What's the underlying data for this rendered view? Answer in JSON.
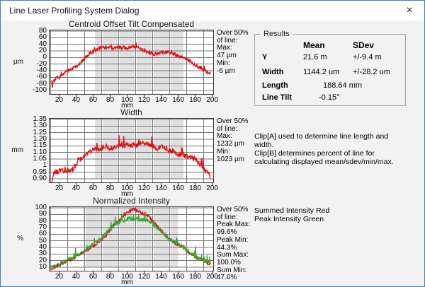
{
  "window": {
    "title": "Line Laser Profiling System Dialog",
    "close_icon": "×"
  },
  "results": {
    "box_label": "Results",
    "col_mean": "Mean",
    "col_sdev": "SDev",
    "rows": [
      {
        "label": "Y",
        "mean": "21.6 m",
        "sdev": "+/-9.4 m"
      },
      {
        "label": "Width",
        "mean": "1144.2 um",
        "sdev": "+/-28.2 um"
      },
      {
        "label": "Length",
        "value": "188.64 mm"
      },
      {
        "label": "Line Tilt",
        "value": "-0.15°"
      }
    ]
  },
  "notes": {
    "clip_lines": [
      "Clip[A] used to determine line length and",
      "width.",
      "Clip[B] determines percent of line for",
      "calculating displayed mean/sdev/min/max."
    ],
    "intensity_legend": [
      "Summed Intensity Red",
      "Peak Intensity Green"
    ]
  },
  "colors": {
    "red": "#dd1111",
    "green": "#2faa33",
    "band": "#e0e0e0",
    "grid": "#777777",
    "frame": "#3a3a3a"
  },
  "chart_data": [
    {
      "type": "line",
      "slug": "centroid-offset",
      "title": "Centroid Offset Tilt Compensated",
      "ylabel": "µm",
      "xlabel": "mm",
      "yticks": [
        "80",
        "60",
        "40",
        "20",
        "0",
        "-20",
        "-40",
        "-60",
        "-80",
        "-100"
      ],
      "xticks": [
        "20",
        "40",
        "60",
        "80",
        "100",
        "120",
        "140",
        "160",
        "180",
        "200"
      ],
      "ylim": [
        -100,
        80
      ],
      "xlim": [
        8,
        202
      ],
      "band_mm": [
        62,
        166
      ],
      "grid": true,
      "legend_position": "none",
      "side_stats": [
        "Over 50%",
        "of line:",
        "Max:",
        "47 µm",
        "Min:",
        "-6 µm"
      ],
      "series": [
        {
          "name": "centroid-offset-trace",
          "color": "#dd1111",
          "noise": 5,
          "spike": 10,
          "spike_prob": 0.08,
          "keypoints": [
            [
              11,
              -65
            ],
            [
              12,
              -88
            ],
            [
              13,
              -70
            ],
            [
              15,
              -72
            ],
            [
              17,
              -60
            ],
            [
              20,
              -62
            ],
            [
              23,
              -52
            ],
            [
              26,
              -50
            ],
            [
              30,
              -42
            ],
            [
              34,
              -36
            ],
            [
              38,
              -30
            ],
            [
              42,
              -24
            ],
            [
              46,
              -14
            ],
            [
              50,
              -4
            ],
            [
              54,
              6
            ],
            [
              58,
              14
            ],
            [
              62,
              22
            ],
            [
              66,
              27
            ],
            [
              70,
              30
            ],
            [
              75,
              29
            ],
            [
              80,
              31
            ],
            [
              84,
              28
            ],
            [
              88,
              33
            ],
            [
              92,
              29
            ],
            [
              96,
              31
            ],
            [
              100,
              26
            ],
            [
              104,
              31
            ],
            [
              108,
              33
            ],
            [
              112,
              30
            ],
            [
              116,
              26
            ],
            [
              120,
              20
            ],
            [
              124,
              16
            ],
            [
              128,
              13
            ],
            [
              132,
              11
            ],
            [
              136,
              10
            ],
            [
              140,
              13
            ],
            [
              144,
              16
            ],
            [
              148,
              18
            ],
            [
              152,
              14
            ],
            [
              156,
              10
            ],
            [
              160,
              5
            ],
            [
              164,
              3
            ],
            [
              168,
              -3
            ],
            [
              172,
              -9
            ],
            [
              176,
              -15
            ],
            [
              180,
              -22
            ],
            [
              184,
              -28
            ],
            [
              188,
              -34
            ],
            [
              192,
              -41
            ],
            [
              196,
              -46
            ],
            [
              198,
              -50
            ]
          ]
        }
      ]
    },
    {
      "type": "line",
      "slug": "width",
      "title": "Width",
      "ylabel": "mm",
      "xlabel": "mm",
      "yticks": [
        "1.35",
        "1.30",
        "1.25",
        "1.20",
        "1.15",
        "1.10",
        "1.05",
        "1",
        "0.95",
        "0.90"
      ],
      "xticks": [
        "20",
        "40",
        "60",
        "80",
        "100",
        "120",
        "140",
        "160",
        "180",
        "200"
      ],
      "ylim": [
        0.9,
        1.35
      ],
      "xlim": [
        8,
        202
      ],
      "band_mm": [
        62,
        166
      ],
      "grid": true,
      "legend_position": "none",
      "side_stats": [
        "Over 50%",
        "of line:",
        "Max:",
        "1232 µm",
        "Min:",
        "1023 µm"
      ],
      "series": [
        {
          "name": "width-trace",
          "color": "#dd1111",
          "noise": 0.02,
          "spike": 0.06,
          "spike_prob": 0.07,
          "keypoints": [
            [
              11,
              0.88
            ],
            [
              13,
              0.93
            ],
            [
              16,
              0.95
            ],
            [
              20,
              0.96
            ],
            [
              24,
              0.965
            ],
            [
              28,
              0.955
            ],
            [
              32,
              0.965
            ],
            [
              36,
              0.975
            ],
            [
              40,
              1.0
            ],
            [
              44,
              1.04
            ],
            [
              48,
              1.06
            ],
            [
              52,
              1.09
            ],
            [
              56,
              1.11
            ],
            [
              60,
              1.12
            ],
            [
              64,
              1.13
            ],
            [
              68,
              1.12
            ],
            [
              72,
              1.14
            ],
            [
              76,
              1.15
            ],
            [
              80,
              1.13
            ],
            [
              84,
              1.14
            ],
            [
              88,
              1.15
            ],
            [
              92,
              1.16
            ],
            [
              96,
              1.15
            ],
            [
              100,
              1.16
            ],
            [
              104,
              1.15
            ],
            [
              108,
              1.16
            ],
            [
              112,
              1.15
            ],
            [
              116,
              1.17
            ],
            [
              120,
              1.16
            ],
            [
              124,
              1.17
            ],
            [
              128,
              1.15
            ],
            [
              132,
              1.14
            ],
            [
              136,
              1.13
            ],
            [
              140,
              1.14
            ],
            [
              144,
              1.13
            ],
            [
              148,
              1.12
            ],
            [
              152,
              1.11
            ],
            [
              156,
              1.1
            ],
            [
              160,
              1.08
            ],
            [
              164,
              1.09
            ],
            [
              168,
              1.07
            ],
            [
              172,
              1.06
            ],
            [
              176,
              1.065
            ],
            [
              180,
              1.05
            ],
            [
              184,
              1.02
            ],
            [
              188,
              0.99
            ],
            [
              192,
              0.965
            ],
            [
              196,
              0.935
            ],
            [
              198,
              0.91
            ]
          ]
        }
      ]
    },
    {
      "type": "line",
      "slug": "normalized-intensity",
      "title": "Normalized Intensity",
      "ylabel": "%",
      "xlabel": "mm",
      "yticks": [
        "100",
        "90",
        "80",
        "70",
        "60",
        "50",
        "40",
        "30",
        "20",
        "10"
      ],
      "xticks": [
        "20",
        "40",
        "60",
        "80",
        "100",
        "120",
        "140",
        "160",
        "180",
        "200"
      ],
      "ylim": [
        10,
        100
      ],
      "xlim": [
        8,
        202
      ],
      "band_mm": [
        48,
        160
      ],
      "grid": true,
      "legend_position": "none",
      "side_stats": [
        "Over 50%",
        "of line:",
        "Peak Max:",
        "99.6%",
        "Peak Min:",
        "44.3%",
        "Sum Max:",
        "100.0%",
        "Sum Min:",
        "47.0%"
      ],
      "series": [
        {
          "name": "summed-intensity-trace",
          "color": "#dd1111",
          "noise": 2.5,
          "spike": 4,
          "spike_prob": 0.06,
          "keypoints": [
            [
              10,
              8
            ],
            [
              15,
              10
            ],
            [
              20,
              13
            ],
            [
              25,
              16
            ],
            [
              30,
              20
            ],
            [
              35,
              23
            ],
            [
              40,
              26
            ],
            [
              45,
              30
            ],
            [
              50,
              33
            ],
            [
              55,
              38
            ],
            [
              60,
              42
            ],
            [
              65,
              47
            ],
            [
              70,
              52
            ],
            [
              75,
              58
            ],
            [
              80,
              65
            ],
            [
              85,
              73
            ],
            [
              90,
              80
            ],
            [
              95,
              87
            ],
            [
              100,
              92
            ],
            [
              105,
              96
            ],
            [
              108,
              98
            ],
            [
              112,
              96
            ],
            [
              116,
              92
            ],
            [
              120,
              90
            ],
            [
              124,
              88
            ],
            [
              128,
              83
            ],
            [
              132,
              77
            ],
            [
              136,
              71
            ],
            [
              140,
              65
            ],
            [
              145,
              58
            ],
            [
              150,
              52
            ],
            [
              155,
              48
            ],
            [
              160,
              44
            ],
            [
              165,
              40
            ],
            [
              170,
              35
            ],
            [
              175,
              30
            ],
            [
              180,
              26
            ],
            [
              185,
              22
            ],
            [
              190,
              19
            ],
            [
              195,
              16
            ],
            [
              198,
              15
            ]
          ]
        },
        {
          "name": "peak-intensity-trace",
          "color": "#2faa33",
          "noise": 3,
          "spike": 13,
          "spike_prob": 0.05,
          "keypoints": [
            [
              10,
              10
            ],
            [
              15,
              12
            ],
            [
              20,
              14
            ],
            [
              25,
              17
            ],
            [
              30,
              21
            ],
            [
              35,
              24
            ],
            [
              40,
              27
            ],
            [
              45,
              31
            ],
            [
              50,
              35
            ],
            [
              55,
              40
            ],
            [
              60,
              45
            ],
            [
              65,
              50
            ],
            [
              70,
              55
            ],
            [
              75,
              61
            ],
            [
              80,
              68
            ],
            [
              85,
              74
            ],
            [
              90,
              78
            ],
            [
              95,
              81
            ],
            [
              100,
              83
            ],
            [
              105,
              84
            ],
            [
              110,
              83
            ],
            [
              115,
              82
            ],
            [
              120,
              82
            ],
            [
              125,
              80
            ],
            [
              130,
              76
            ],
            [
              135,
              70
            ],
            [
              140,
              64
            ],
            [
              145,
              58
            ],
            [
              150,
              52
            ],
            [
              155,
              49
            ],
            [
              160,
              45
            ],
            [
              165,
              41
            ],
            [
              170,
              36
            ],
            [
              175,
              31
            ],
            [
              180,
              27
            ],
            [
              185,
              23
            ],
            [
              190,
              20
            ],
            [
              195,
              18
            ],
            [
              198,
              17
            ]
          ]
        }
      ]
    }
  ]
}
